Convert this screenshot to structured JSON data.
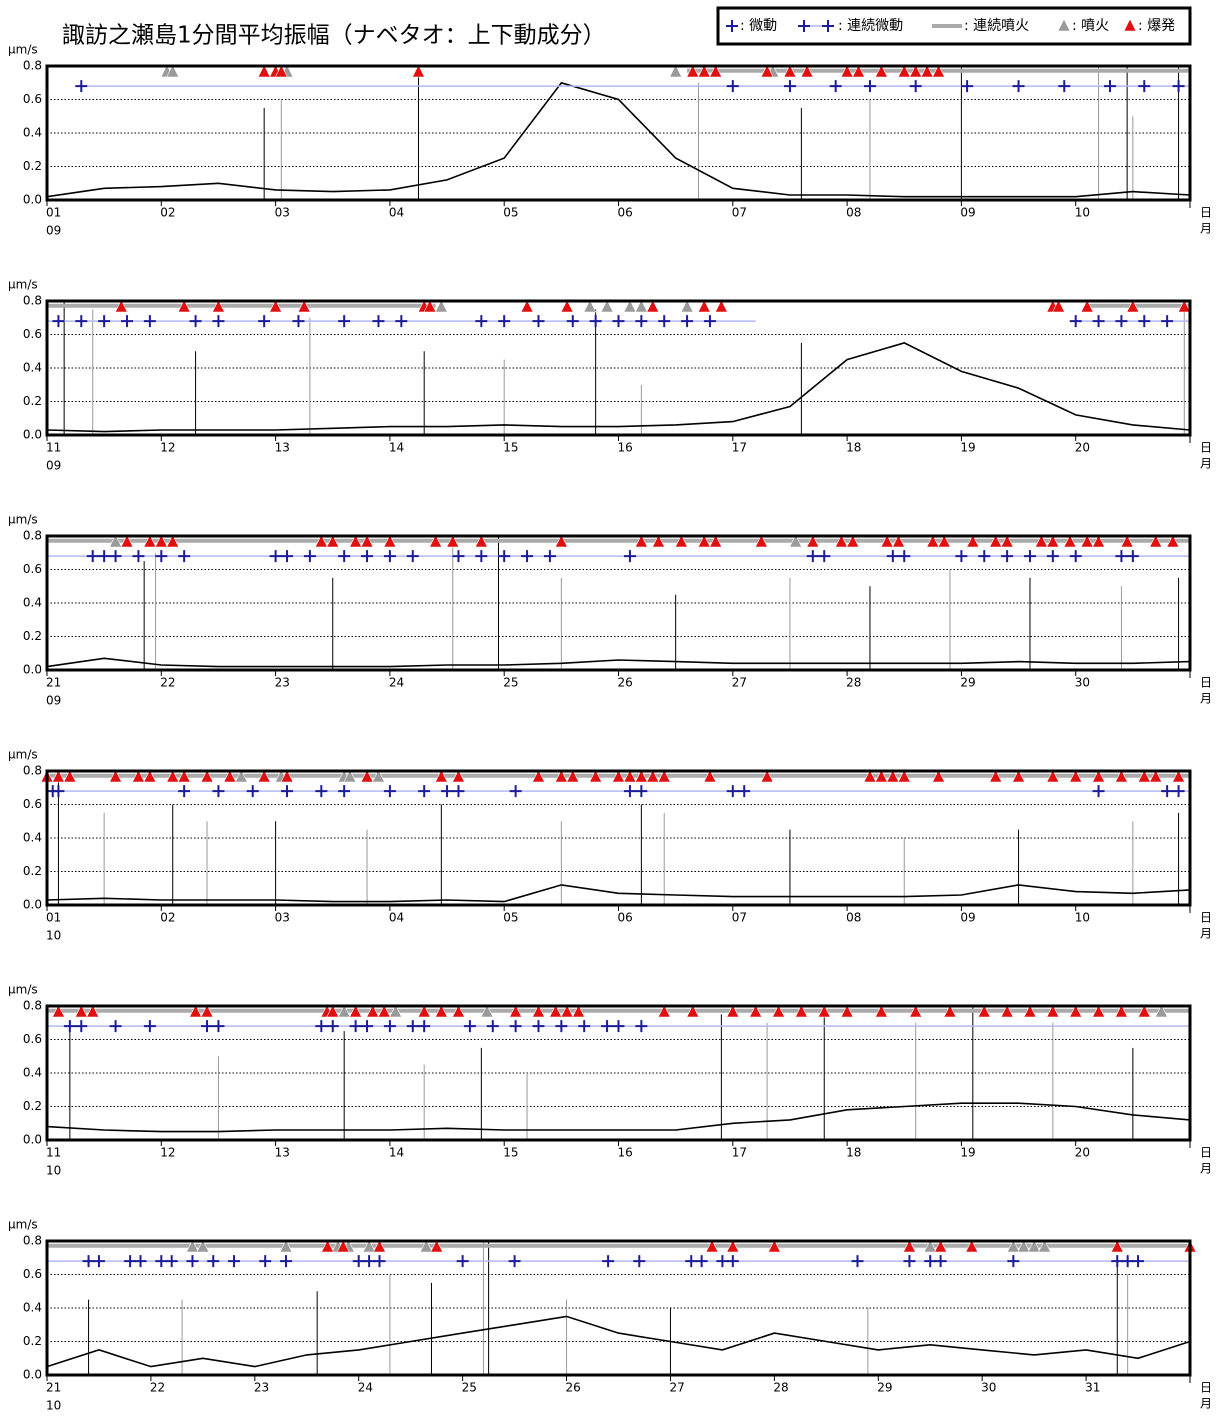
{
  "title": "諏訪之瀬島1分間平均振幅（ナベタオ：上下動成分）",
  "legend": {
    "tremor": ": 微動",
    "continuous_tremor": ": 連続微動",
    "continuous_eruption": ": 連続噴火",
    "eruption": ": 噴火",
    "explosion": ": 爆発",
    "colors": {
      "tremor": "#1c1c9a",
      "continuous_tremor": "#b4b8f0",
      "continuous_eruption": "#aaaaaa",
      "eruption": "#9a9a9a",
      "explosion": "#e01010",
      "line": "#000000"
    }
  },
  "chart_data": [
    {
      "type": "line",
      "y_unit": "μm/s",
      "day_unit": "日",
      "month_unit": "月",
      "month": "09",
      "ylim": [
        0,
        0.8
      ],
      "yticks": [
        {
          "value": 0,
          "label": "0.0"
        },
        {
          "value": 0.2,
          "label": "0.2"
        },
        {
          "value": 0.4,
          "label": "0.4"
        },
        {
          "value": 0.6,
          "label": "0.6"
        },
        {
          "value": 0.8,
          "label": "0.8"
        }
      ],
      "xlim": [
        1,
        11
      ],
      "xticks": [
        {
          "value": 1,
          "label": "01"
        },
        {
          "value": 2,
          "label": "02"
        },
        {
          "value": 3,
          "label": "03"
        },
        {
          "value": 4,
          "label": "04"
        },
        {
          "value": 5,
          "label": "05"
        },
        {
          "value": 6,
          "label": "06"
        },
        {
          "value": 7,
          "label": "07"
        },
        {
          "value": 8,
          "label": "08"
        },
        {
          "value": 9,
          "label": "09"
        },
        {
          "value": 10,
          "label": "10"
        }
      ],
      "x": [
        1,
        1.5,
        2,
        2.5,
        3,
        3.5,
        4,
        4.5,
        5,
        5.5,
        6,
        6.5,
        7,
        7.5,
        8,
        8.5,
        9,
        9.5,
        10,
        10.5,
        11
      ],
      "values": [
        0.02,
        0.07,
        0.08,
        0.1,
        0.06,
        0.05,
        0.06,
        0.12,
        0.25,
        0.7,
        0.6,
        0.25,
        0.07,
        0.03,
        0.03,
        0.02,
        0.02,
        0.02,
        0.02,
        0.05,
        0.03
      ],
      "spike_x": [
        2.9,
        3.05,
        4.25,
        6.7,
        7.6,
        8.2,
        9.0,
        10.2,
        10.45,
        10.5,
        10.9
      ],
      "spike_values": [
        0.55,
        0.6,
        0.8,
        0.7,
        0.55,
        0.6,
        0.8,
        0.8,
        0.8,
        0.5,
        0.8
      ],
      "tremor": [
        1.3,
        7.0,
        7.5,
        7.9,
        8.2,
        8.6,
        9.05,
        9.5,
        9.9,
        10.3,
        10.6,
        10.9
      ],
      "explosion": [
        2.9,
        3.0,
        3.05,
        4.25,
        6.65,
        6.75,
        6.85,
        7.3,
        7.5,
        7.65,
        8.0,
        8.1,
        8.3,
        8.5,
        8.6,
        8.7,
        8.8
      ],
      "eruption": [
        2.05,
        2.1,
        3.1,
        6.5,
        7.3,
        7.35
      ],
      "continuous_eruption": [
        [
          6.6,
          11
        ]
      ],
      "continuous_tremor": [
        [
          1.3,
          11
        ]
      ]
    },
    {
      "type": "line",
      "y_unit": "μm/s",
      "day_unit": "日",
      "month_unit": "月",
      "month": "09",
      "ylim": [
        0,
        0.8
      ],
      "yticks": [
        {
          "value": 0,
          "label": "0.0"
        },
        {
          "value": 0.2,
          "label": "0.2"
        },
        {
          "value": 0.4,
          "label": "0.4"
        },
        {
          "value": 0.6,
          "label": "0.6"
        },
        {
          "value": 0.8,
          "label": "0.8"
        }
      ],
      "xlim": [
        11,
        21
      ],
      "xticks": [
        11,
        12,
        13,
        14,
        15,
        16,
        17,
        18,
        19,
        20
      ],
      "x": [
        11,
        11.5,
        12,
        12.5,
        13,
        13.5,
        14,
        14.5,
        15,
        15.5,
        16,
        16.5,
        17,
        17.5,
        18,
        18.5,
        19,
        19.5,
        20,
        20.5,
        21
      ],
      "values": [
        0.03,
        0.02,
        0.03,
        0.03,
        0.03,
        0.04,
        0.05,
        0.05,
        0.06,
        0.05,
        0.05,
        0.06,
        0.08,
        0.17,
        0.45,
        0.55,
        0.38,
        0.28,
        0.12,
        0.06,
        0.03
      ],
      "spike_x": [
        11.15,
        11.4,
        12.3,
        13.3,
        14.3,
        15.0,
        15.8,
        16.2,
        17.6,
        20.95
      ],
      "spike_values": [
        0.8,
        0.75,
        0.5,
        0.7,
        0.5,
        0.45,
        0.75,
        0.3,
        0.55,
        0.8
      ],
      "tremor": [
        11.1,
        11.3,
        11.5,
        11.7,
        11.9,
        12.3,
        12.5,
        12.9,
        13.2,
        13.6,
        13.9,
        14.1,
        14.8,
        15.0,
        15.3,
        15.6,
        15.8,
        16.0,
        16.2,
        16.4,
        16.6,
        16.8,
        20.0,
        20.2,
        20.4,
        20.6,
        20.8
      ],
      "explosion": [
        11.65,
        12.2,
        12.5,
        13.0,
        13.25,
        14.3,
        14.35,
        15.2,
        15.55,
        16.3,
        16.75,
        16.9,
        19.8,
        19.85,
        20.1,
        20.5,
        20.95
      ],
      "eruption": [
        14.45,
        15.75,
        15.9,
        16.1,
        16.2,
        16.6
      ],
      "continuous_eruption": [
        [
          11,
          14.4
        ],
        [
          20.1,
          21
        ]
      ],
      "continuous_tremor": [
        [
          11,
          17.2
        ],
        [
          20,
          21
        ]
      ]
    },
    {
      "type": "line",
      "y_unit": "μm/s",
      "day_unit": "日",
      "month_unit": "月",
      "month": "09",
      "ylim": [
        0,
        0.8
      ],
      "yticks": [
        {
          "value": 0,
          "label": "0.0"
        },
        {
          "value": 0.2,
          "label": "0.2"
        },
        {
          "value": 0.4,
          "label": "0.4"
        },
        {
          "value": 0.6,
          "label": "0.6"
        },
        {
          "value": 0.8,
          "label": "0.8"
        }
      ],
      "xlim": [
        21,
        31
      ],
      "xticks": [
        21,
        22,
        23,
        24,
        25,
        26,
        27,
        28,
        29,
        30
      ],
      "x": [
        21,
        21.5,
        22,
        22.5,
        23,
        23.5,
        24,
        24.5,
        25,
        25.5,
        26,
        26.5,
        27,
        27.5,
        28,
        28.5,
        29,
        29.5,
        30,
        30.5,
        31
      ],
      "values": [
        0.02,
        0.07,
        0.03,
        0.02,
        0.02,
        0.02,
        0.02,
        0.03,
        0.03,
        0.04,
        0.06,
        0.05,
        0.04,
        0.04,
        0.04,
        0.04,
        0.04,
        0.05,
        0.04,
        0.04,
        0.05
      ],
      "spike_x": [
        21.85,
        21.95,
        23.5,
        24.55,
        24.95,
        25.5,
        26.5,
        27.5,
        28.2,
        28.9,
        29.6,
        30.4,
        30.9
      ],
      "spike_values": [
        0.65,
        0.7,
        0.55,
        0.75,
        0.8,
        0.55,
        0.45,
        0.55,
        0.5,
        0.6,
        0.55,
        0.5,
        0.55
      ],
      "tremor": [
        21.4,
        21.5,
        21.6,
        21.8,
        22.0,
        22.2,
        23.0,
        23.1,
        23.3,
        23.6,
        23.8,
        24.0,
        24.2,
        24.6,
        24.8,
        25.0,
        25.2,
        25.4,
        26.1,
        27.7,
        27.8,
        28.4,
        28.5,
        29.0,
        29.2,
        29.4,
        29.6,
        29.8,
        30.0,
        30.4,
        30.5
      ],
      "explosion": [
        21.7,
        21.9,
        22.0,
        22.1,
        23.4,
        23.5,
        23.7,
        23.8,
        24.0,
        24.4,
        24.55,
        24.8,
        25.5,
        26.2,
        26.35,
        26.55,
        26.75,
        26.85,
        27.25,
        27.7,
        27.95,
        28.05,
        28.35,
        28.45,
        28.75,
        28.85,
        29.1,
        29.3,
        29.4,
        29.7,
        29.8,
        29.95,
        30.1,
        30.2,
        30.45,
        30.7,
        30.85
      ],
      "eruption": [
        21.6,
        27.55
      ],
      "continuous_eruption": [
        [
          21,
          31
        ]
      ],
      "continuous_tremor": [
        [
          21,
          31
        ]
      ]
    },
    {
      "type": "line",
      "y_unit": "μm/s",
      "day_unit": "日",
      "month_unit": "月",
      "month": "10",
      "ylim": [
        0,
        0.8
      ],
      "yticks": [
        {
          "value": 0,
          "label": "0.0"
        },
        {
          "value": 0.2,
          "label": "0.2"
        },
        {
          "value": 0.4,
          "label": "0.4"
        },
        {
          "value": 0.6,
          "label": "0.6"
        },
        {
          "value": 0.8,
          "label": "0.8"
        }
      ],
      "xlim": [
        1,
        11
      ],
      "xticks": [
        {
          "value": 1,
          "label": "01"
        },
        {
          "value": 2,
          "label": "02"
        },
        {
          "value": 3,
          "label": "03"
        },
        {
          "value": 4,
          "label": "04"
        },
        {
          "value": 5,
          "label": "05"
        },
        {
          "value": 6,
          "label": "06"
        },
        {
          "value": 7,
          "label": "07"
        },
        {
          "value": 8,
          "label": "08"
        },
        {
          "value": 9,
          "label": "09"
        },
        {
          "value": 10,
          "label": "10"
        }
      ],
      "x": [
        1,
        1.5,
        2,
        2.5,
        3,
        3.5,
        4,
        4.5,
        5,
        5.5,
        6,
        6.5,
        7,
        7.5,
        8,
        8.5,
        9,
        9.5,
        10,
        10.5,
        11
      ],
      "values": [
        0.03,
        0.04,
        0.03,
        0.03,
        0.03,
        0.02,
        0.02,
        0.03,
        0.02,
        0.12,
        0.07,
        0.06,
        0.05,
        0.05,
        0.05,
        0.05,
        0.06,
        0.12,
        0.08,
        0.07,
        0.09
      ],
      "spike_x": [
        1.1,
        1.5,
        2.1,
        2.4,
        3.0,
        3.8,
        4.45,
        5.5,
        6.2,
        6.4,
        7.5,
        8.5,
        9.5,
        10.5,
        10.9
      ],
      "spike_values": [
        0.75,
        0.55,
        0.6,
        0.5,
        0.5,
        0.45,
        0.6,
        0.5,
        0.6,
        0.55,
        0.45,
        0.4,
        0.45,
        0.5,
        0.55
      ],
      "tremor": [
        1.05,
        1.1,
        2.2,
        2.5,
        2.8,
        3.1,
        3.4,
        3.6,
        4.0,
        4.3,
        4.5,
        4.6,
        5.1,
        6.1,
        6.2,
        7.0,
        7.1,
        10.2,
        10.8,
        10.9
      ],
      "explosion": [
        1.0,
        1.1,
        1.2,
        1.6,
        1.8,
        1.9,
        2.1,
        2.2,
        2.4,
        2.6,
        2.9,
        3.1,
        3.8,
        4.45,
        4.6,
        5.3,
        5.5,
        5.6,
        5.8,
        6.0,
        6.1,
        6.2,
        6.3,
        6.4,
        6.8,
        7.3,
        8.2,
        8.3,
        8.4,
        8.5,
        8.8,
        9.3,
        9.5,
        9.8,
        10.0,
        10.2,
        10.4,
        10.6,
        10.7,
        10.9
      ],
      "eruption": [
        2.7,
        3.05,
        3.6,
        3.65,
        3.9,
        4.6
      ],
      "continuous_eruption": [
        [
          1,
          11
        ]
      ],
      "continuous_tremor": [
        [
          1,
          11
        ]
      ]
    },
    {
      "type": "line",
      "y_unit": "μm/s",
      "day_unit": "日",
      "month_unit": "月",
      "month": "10",
      "ylim": [
        0,
        0.8
      ],
      "yticks": [
        {
          "value": 0,
          "label": "0.0"
        },
        {
          "value": 0.2,
          "label": "0.2"
        },
        {
          "value": 0.4,
          "label": "0.4"
        },
        {
          "value": 0.6,
          "label": "0.6"
        },
        {
          "value": 0.8,
          "label": "0.8"
        }
      ],
      "xlim": [
        11,
        21
      ],
      "xticks": [
        11,
        12,
        13,
        14,
        15,
        16,
        17,
        18,
        19,
        20
      ],
      "x": [
        11,
        11.5,
        12,
        12.5,
        13,
        13.5,
        14,
        14.5,
        15,
        15.5,
        16,
        16.5,
        17,
        17.5,
        18,
        18.5,
        19,
        19.5,
        20,
        20.5,
        21
      ],
      "values": [
        0.08,
        0.06,
        0.05,
        0.05,
        0.06,
        0.06,
        0.06,
        0.07,
        0.06,
        0.06,
        0.06,
        0.06,
        0.1,
        0.12,
        0.18,
        0.2,
        0.22,
        0.22,
        0.2,
        0.15,
        0.12
      ],
      "spike_x": [
        11.2,
        12.5,
        13.6,
        14.3,
        14.8,
        15.2,
        16.9,
        17.3,
        17.8,
        18.6,
        19.1,
        19.8,
        20.5
      ],
      "spike_values": [
        0.7,
        0.5,
        0.65,
        0.45,
        0.55,
        0.4,
        0.75,
        0.7,
        0.8,
        0.7,
        0.8,
        0.7,
        0.55
      ],
      "tremor": [
        11.2,
        11.3,
        11.6,
        11.9,
        12.4,
        12.5,
        13.4,
        13.5,
        13.7,
        13.8,
        14.0,
        14.2,
        14.3,
        14.7,
        14.9,
        15.1,
        15.3,
        15.5,
        15.7,
        15.9,
        16.0,
        16.2
      ],
      "explosion": [
        11.1,
        11.3,
        11.4,
        12.3,
        12.4,
        13.45,
        13.5,
        13.7,
        13.85,
        13.95,
        14.3,
        14.45,
        14.6,
        15.1,
        15.3,
        15.45,
        15.55,
        15.65,
        16.4,
        16.65,
        17.0,
        17.2,
        17.4,
        17.6,
        17.8,
        18.0,
        18.3,
        18.6,
        18.9,
        19.2,
        19.4,
        19.6,
        19.8,
        20.0,
        20.2,
        20.4,
        20.6
      ],
      "eruption": [
        13.6,
        14.05,
        14.85,
        20.75
      ],
      "continuous_eruption": [
        [
          11,
          21
        ]
      ],
      "continuous_tremor": [
        [
          11,
          21
        ]
      ]
    },
    {
      "type": "line",
      "y_unit": "μm/s",
      "day_unit": "日",
      "month_unit": "月",
      "month": "10",
      "ylim": [
        0,
        0.8
      ],
      "yticks": [
        {
          "value": 0,
          "label": "0.0"
        },
        {
          "value": 0.2,
          "label": "0.2"
        },
        {
          "value": 0.4,
          "label": "0.4"
        },
        {
          "value": 0.6,
          "label": "0.6"
        },
        {
          "value": 0.8,
          "label": "0.8"
        }
      ],
      "xlim": [
        21,
        32
      ],
      "xticks": [
        21,
        22,
        23,
        24,
        25,
        26,
        27,
        28,
        29,
        30,
        31
      ],
      "x": [
        21,
        21.5,
        22,
        22.5,
        23,
        23.5,
        24,
        24.5,
        25,
        25.5,
        26,
        26.5,
        27,
        27.5,
        28,
        28.5,
        29,
        29.5,
        30,
        30.5,
        31,
        31.5,
        32
      ],
      "values": [
        0.05,
        0.15,
        0.05,
        0.1,
        0.05,
        0.12,
        0.15,
        0.2,
        0.25,
        0.3,
        0.35,
        0.25,
        0.2,
        0.15,
        0.25,
        0.2,
        0.15,
        0.18,
        0.15,
        0.12,
        0.15,
        0.1,
        0.2
      ],
      "spike_x": [
        21.4,
        22.3,
        23.6,
        24.3,
        24.7,
        25.2,
        25.25,
        26.0,
        27.0,
        28.9,
        31.3,
        31.4
      ],
      "spike_values": [
        0.45,
        0.45,
        0.5,
        0.6,
        0.55,
        0.8,
        0.8,
        0.45,
        0.4,
        0.4,
        0.65,
        0.6
      ],
      "tremor": [
        21.4,
        21.5,
        21.8,
        21.9,
        22.1,
        22.2,
        22.4,
        22.6,
        22.8,
        23.1,
        23.3,
        24.0,
        24.1,
        24.2,
        25.0,
        25.5,
        26.4,
        26.7,
        27.2,
        27.3,
        27.5,
        27.6,
        28.8,
        29.3,
        29.5,
        29.6,
        30.3,
        31.3,
        31.4,
        31.5
      ],
      "explosion": [
        23.7,
        23.85,
        24.2,
        24.75,
        27.4,
        27.6,
        28.0,
        29.3,
        29.6,
        29.9,
        31.3,
        32.0
      ],
      "eruption": [
        22.4,
        22.5,
        23.3,
        23.8,
        23.9,
        24.1,
        24.2,
        24.65,
        29.5,
        30.3,
        30.4,
        30.5,
        30.6
      ],
      "continuous_eruption": [
        [
          21,
          32
        ]
      ],
      "continuous_tremor": [
        [
          21,
          32
        ]
      ]
    }
  ]
}
